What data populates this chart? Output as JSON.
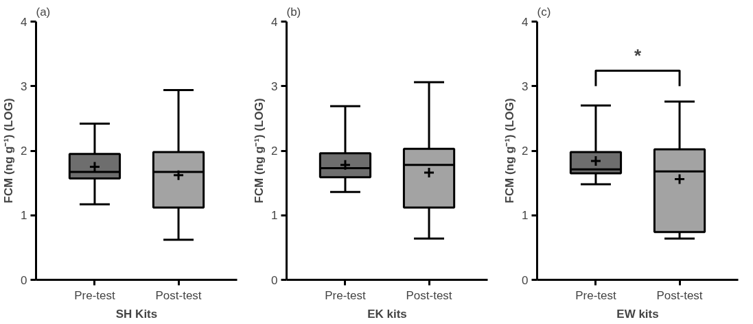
{
  "chart_data": [
    {
      "type": "box",
      "title": "(a)",
      "xlabel": "SH Kits",
      "ylabel": "FCM (ng g⁻¹) (LOG)",
      "categories": [
        "Pre-test",
        "Post-test"
      ],
      "colors": [
        "#6e6e6e",
        "#a3a3a3"
      ],
      "boxes": [
        {
          "low": 1.17,
          "q1": 1.57,
          "median": 1.67,
          "q3": 1.95,
          "high": 2.42,
          "mean": 1.75
        },
        {
          "low": 0.62,
          "q1": 1.12,
          "median": 1.67,
          "q3": 1.98,
          "high": 2.94,
          "mean": 1.62
        }
      ],
      "ylim": [
        0,
        4
      ],
      "yticks": [
        0,
        1,
        2,
        3,
        4
      ],
      "grid": false
    },
    {
      "type": "box",
      "title": "(b)",
      "xlabel": "EK kits",
      "ylabel": "FCM (ng g⁻¹) (LOG)",
      "categories": [
        "Pre-test",
        "Post-test"
      ],
      "colors": [
        "#6e6e6e",
        "#a3a3a3"
      ],
      "boxes": [
        {
          "low": 1.36,
          "q1": 1.59,
          "median": 1.73,
          "q3": 1.96,
          "high": 2.69,
          "mean": 1.78
        },
        {
          "low": 0.64,
          "q1": 1.12,
          "median": 1.78,
          "q3": 2.03,
          "high": 3.06,
          "mean": 1.66
        }
      ],
      "ylim": [
        0,
        4
      ],
      "yticks": [
        0,
        1,
        2,
        3,
        4
      ],
      "grid": false
    },
    {
      "type": "box",
      "title": "(c)",
      "xlabel": "EW kits",
      "ylabel": "FCM (ng g⁻¹) (LOG)",
      "categories": [
        "Pre-test",
        "Post-test"
      ],
      "colors": [
        "#6e6e6e",
        "#a3a3a3"
      ],
      "boxes": [
        {
          "low": 1.48,
          "q1": 1.65,
          "median": 1.71,
          "q3": 1.98,
          "high": 2.7,
          "mean": 1.84
        },
        {
          "low": 0.64,
          "q1": 0.74,
          "median": 1.68,
          "q3": 2.02,
          "high": 2.76,
          "mean": 1.56
        }
      ],
      "ylim": [
        0,
        4
      ],
      "yticks": [
        0,
        1,
        2,
        3,
        4
      ],
      "grid": false,
      "annotations": [
        "*"
      ]
    }
  ]
}
